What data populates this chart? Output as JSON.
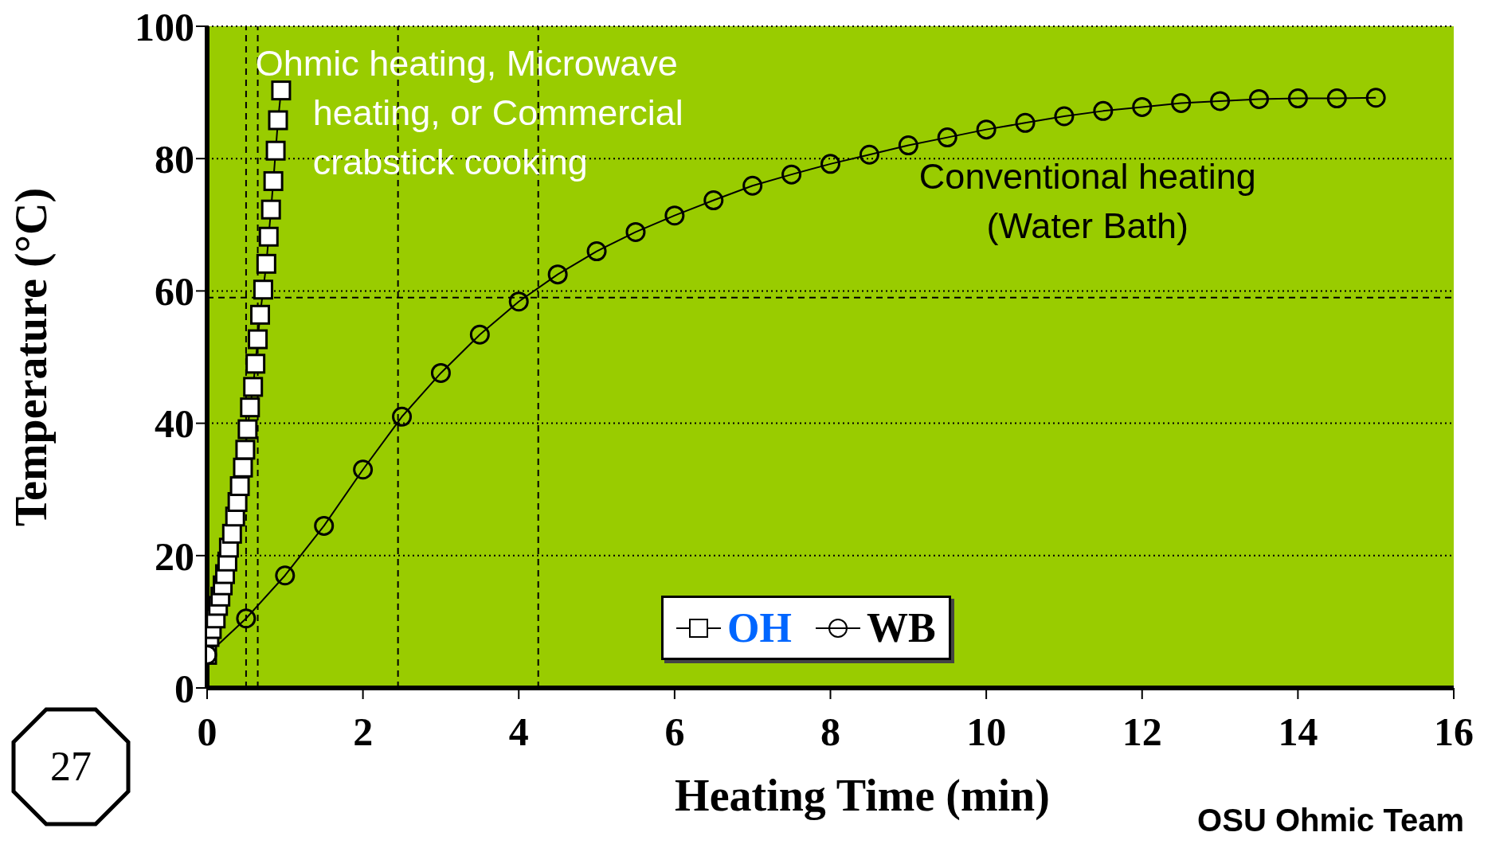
{
  "chart_data": {
    "type": "line",
    "xlabel": "Heating Time (min)",
    "ylabel": "Temperature (°C)",
    "xlim": [
      0,
      16
    ],
    "xticks": [
      0,
      2,
      4,
      6,
      8,
      10,
      12,
      14,
      16
    ],
    "ylim": [
      0,
      100
    ],
    "yticks": [
      0,
      20,
      40,
      60,
      80,
      100
    ],
    "grid": "y",
    "legend": "bottom",
    "series": [
      {
        "name": "OH",
        "color": "#ffffff",
        "marker": "square",
        "x": [
          0,
          0.03,
          0.06,
          0.11,
          0.14,
          0.17,
          0.2,
          0.23,
          0.26,
          0.28,
          0.32,
          0.36,
          0.39,
          0.42,
          0.46,
          0.49,
          0.52,
          0.55,
          0.59,
          0.62,
          0.65,
          0.68,
          0.72,
          0.76,
          0.79,
          0.82,
          0.85,
          0.88,
          0.91,
          0.95
        ],
        "values": [
          5,
          7.7,
          8.9,
          10.5,
          12.4,
          13.8,
          15.5,
          17.2,
          19.1,
          21.2,
          23.3,
          25.9,
          28.1,
          30.5,
          33.3,
          36,
          39.1,
          42.4,
          45.5,
          49,
          52.7,
          56.4,
          60.2,
          64.1,
          68.2,
          72.3,
          76.6,
          81.2,
          85.8,
          90.3
        ]
      },
      {
        "name": "WB",
        "color": "#000000",
        "marker": "circle",
        "x": [
          0,
          0.5,
          1,
          1.5,
          2,
          2.5,
          3,
          3.5,
          4,
          4.5,
          5,
          5.5,
          6,
          6.5,
          7,
          7.5,
          8,
          8.5,
          9,
          9.5,
          10,
          10.5,
          11,
          11.5,
          12,
          12.5,
          13,
          13.5,
          14,
          14.5,
          15
        ],
        "values": [
          5,
          10.5,
          17,
          24.5,
          33,
          41,
          47.6,
          53.4,
          58.4,
          62.5,
          66,
          68.9,
          71.4,
          73.7,
          75.9,
          77.6,
          79.2,
          80.6,
          82,
          83.2,
          84.4,
          85.4,
          86.4,
          87.2,
          87.8,
          88.4,
          88.7,
          89,
          89.1,
          89.1,
          89.2
        ]
      }
    ],
    "ref_lines": [
      {
        "axis": "x",
        "value": 0.5,
        "line_style": "dashed"
      },
      {
        "axis": "x",
        "value": 0.65,
        "line_style": "dashed"
      },
      {
        "axis": "x",
        "value": 2.45,
        "line_style": "dashed"
      },
      {
        "axis": "x",
        "value": 4.25,
        "line_style": "dashed"
      },
      {
        "axis": "y",
        "value": 59,
        "line_style": "dashed"
      }
    ],
    "annotations": [
      "Ohmic heating, Microwave\nheating, or Commercial\ncrabstick cooking",
      "Conventional heating\n(Water Bath)",
      "OSU Ohmic Team",
      "27"
    ]
  }
}
